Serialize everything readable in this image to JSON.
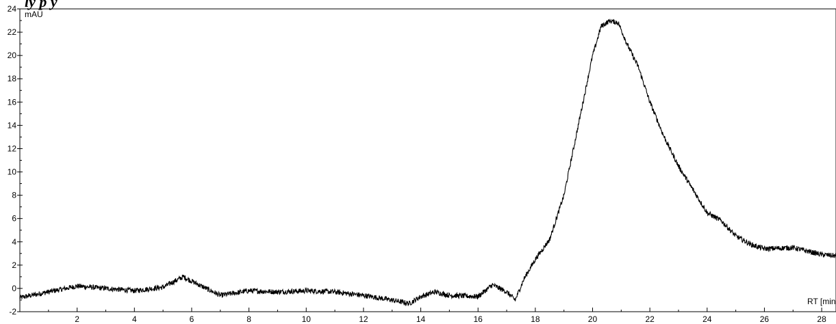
{
  "chart_data": {
    "type": "line",
    "title": "",
    "top_fragment": "ly          p y",
    "xlabel": "RT [min]",
    "ylabel": "mAU",
    "xlim": [
      0,
      28.5
    ],
    "ylim": [
      -2,
      24
    ],
    "x_ticks": [
      2,
      4,
      6,
      8,
      10,
      12,
      14,
      16,
      18,
      20,
      22,
      24,
      26,
      28
    ],
    "y_ticks": [
      -2,
      0,
      2,
      4,
      6,
      8,
      10,
      12,
      14,
      16,
      18,
      20,
      22,
      24
    ],
    "grid": false,
    "line_color": "#000000",
    "series": [
      {
        "x": [
          0,
          1,
          2,
          3,
          4,
          5,
          5.7,
          6.5,
          7,
          8,
          9,
          10,
          11,
          12,
          13,
          13.6,
          14,
          14.5,
          15,
          16,
          16.5,
          17,
          17.3,
          17.6,
          18,
          18.5,
          19,
          19.5,
          20,
          20.3,
          20.6,
          20.9,
          21.2,
          21.6,
          22,
          22.5,
          23,
          23.5,
          24,
          24.5,
          25,
          25.5,
          26,
          27,
          28,
          28.5
        ],
        "y": [
          -0.8,
          -0.3,
          0.2,
          0.0,
          -0.2,
          0.1,
          1.0,
          0.0,
          -0.6,
          -0.2,
          -0.3,
          -0.2,
          -0.3,
          -0.6,
          -1.0,
          -1.3,
          -0.7,
          -0.3,
          -0.6,
          -0.7,
          0.3,
          -0.3,
          -1.0,
          0.8,
          2.5,
          4.2,
          8.0,
          14.0,
          20.0,
          22.5,
          23.0,
          22.8,
          21.0,
          19.0,
          16.0,
          13.0,
          10.5,
          8.5,
          6.5,
          5.8,
          4.5,
          3.8,
          3.4,
          3.5,
          2.9,
          2.8
        ]
      }
    ]
  }
}
